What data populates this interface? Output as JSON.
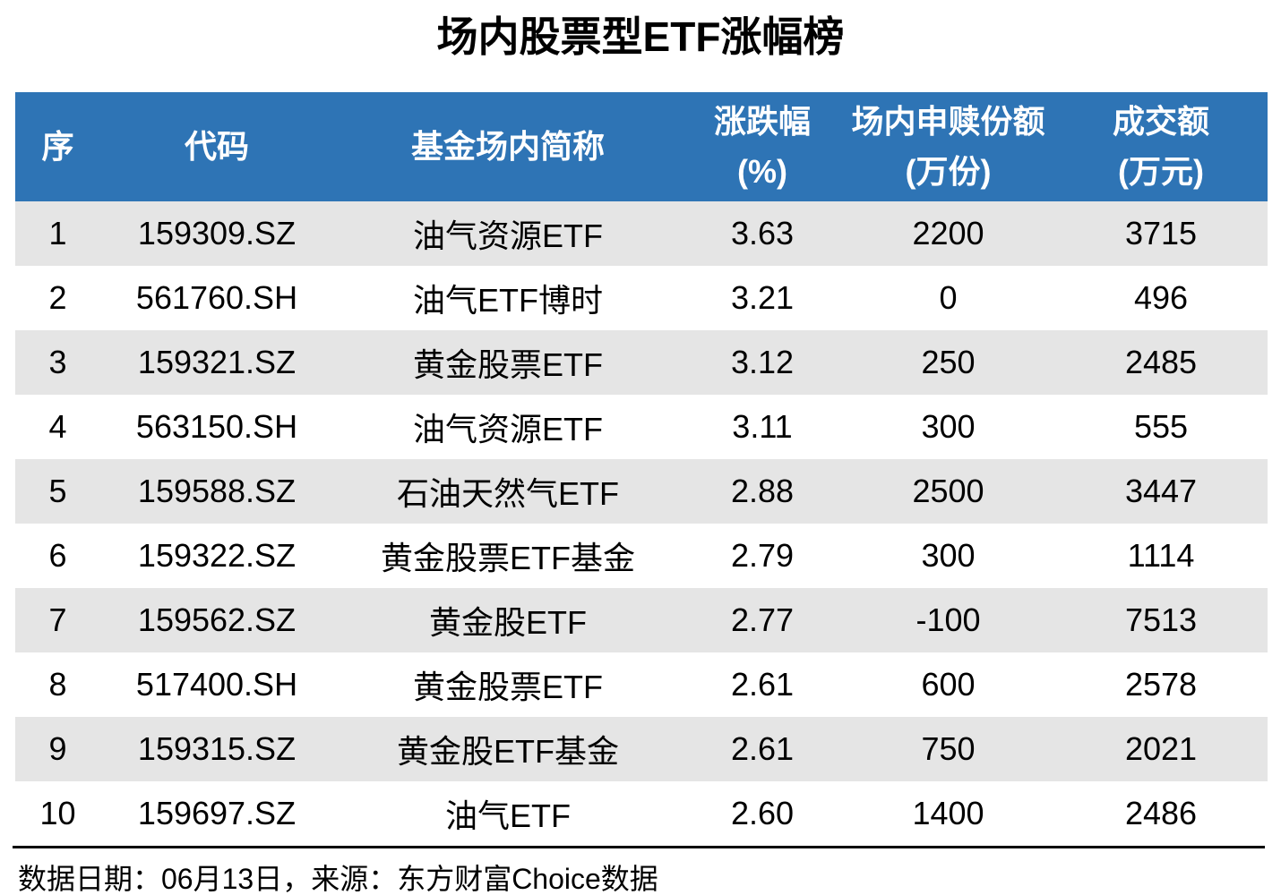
{
  "title": "场内股票型ETF涨幅榜",
  "chart_data": {
    "type": "table",
    "title": "场内股票型ETF涨幅榜",
    "columns": [
      {
        "label": "序",
        "sub": ""
      },
      {
        "label": "代码",
        "sub": ""
      },
      {
        "label": "基金场内简称",
        "sub": ""
      },
      {
        "label": "涨跌幅",
        "sub": "(%)"
      },
      {
        "label": "场内申赎份额",
        "sub": "(万份)"
      },
      {
        "label": "成交额",
        "sub": "(万元)"
      }
    ],
    "rows": [
      [
        "1",
        "159309.SZ",
        "油气资源ETF",
        "3.63",
        "2200",
        "3715"
      ],
      [
        "2",
        "561760.SH",
        "油气ETF博时",
        "3.21",
        "0",
        "496"
      ],
      [
        "3",
        "159321.SZ",
        "黄金股票ETF",
        "3.12",
        "250",
        "2485"
      ],
      [
        "4",
        "563150.SH",
        "油气资源ETF",
        "3.11",
        "300",
        "555"
      ],
      [
        "5",
        "159588.SZ",
        "石油天然气ETF",
        "2.88",
        "2500",
        "3447"
      ],
      [
        "6",
        "159322.SZ",
        "黄金股票ETF基金",
        "2.79",
        "300",
        "1114"
      ],
      [
        "7",
        "159562.SZ",
        "黄金股ETF",
        "2.77",
        "-100",
        "7513"
      ],
      [
        "8",
        "517400.SH",
        "黄金股票ETF",
        "2.61",
        "600",
        "2578"
      ],
      [
        "9",
        "159315.SZ",
        "黄金股ETF基金",
        "2.61",
        "750",
        "2021"
      ],
      [
        "10",
        "159697.SZ",
        "油气ETF",
        "2.60",
        "1400",
        "2486"
      ]
    ]
  },
  "footer": {
    "note": "数据日期：06月13日，来源：东方财富Choice数据"
  },
  "colors": {
    "header_bg": "#2E74B5",
    "header_text": "#FFFFFF",
    "row_alt_bg": "#E5E5E5",
    "row_bg": "#FFFFFF",
    "body_text": "#000000",
    "divider": "#000000"
  }
}
